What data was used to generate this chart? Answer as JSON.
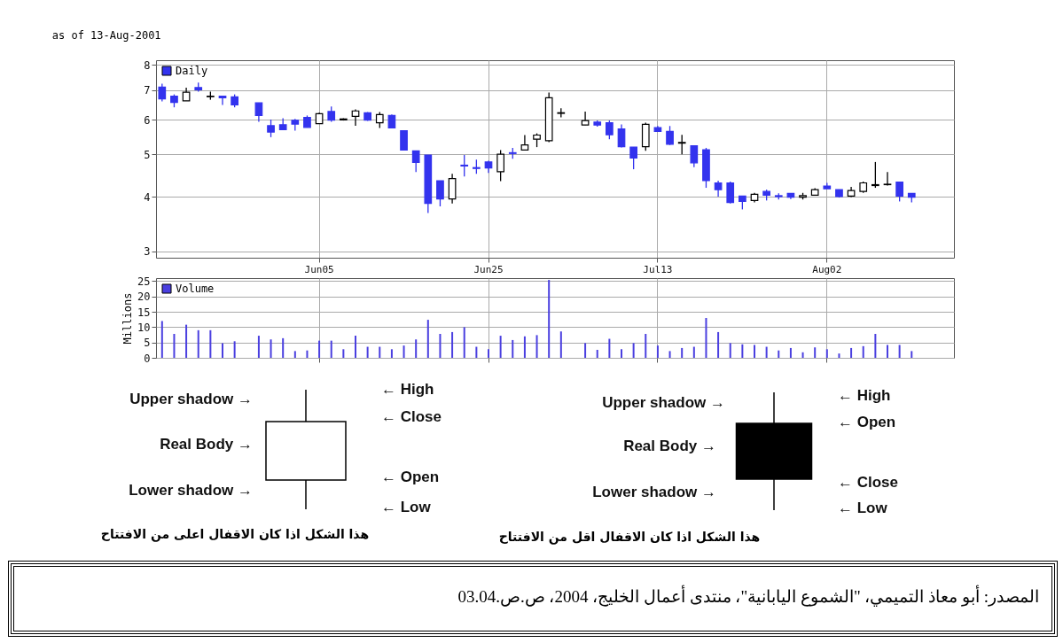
{
  "chart_data": [
    {
      "type": "candlestick",
      "subtitle": "as of 13-Aug-2001",
      "log": true,
      "grid": true,
      "legend": "top left",
      "ylim": [
        2.9,
        8.2
      ],
      "yticks": [
        3,
        4,
        5,
        6,
        7,
        8
      ],
      "categories": [
        null,
        null,
        null,
        null,
        null,
        null,
        null,
        null,
        null,
        null,
        null,
        null,
        null,
        "Jun05",
        null,
        null,
        null,
        null,
        null,
        null,
        null,
        null,
        null,
        null,
        null,
        null,
        null,
        "Jun25",
        null,
        null,
        null,
        null,
        null,
        null,
        null,
        null,
        null,
        null,
        null,
        null,
        null,
        "Jul13",
        null,
        null,
        null,
        null,
        null,
        null,
        null,
        null,
        null,
        null,
        null,
        null,
        null,
        "Aug02",
        null,
        null,
        null,
        null,
        null,
        null,
        null,
        null,
        null,
        null
      ],
      "series": [
        {
          "name": "Daily",
          "color": "#3333ee",
          "colors": [
            "#3333ee",
            "#3333ee",
            "#ffffff",
            "#3333ee",
            "#ffffff",
            "#3333ee",
            "#3333ee",
            null,
            "#3333ee",
            "#3333ee",
            "#3333ee",
            "#3333ee",
            "#3333ee",
            "#ffffff",
            "#3333ee",
            "#ffffff",
            "#ffffff",
            "#3333ee",
            "#ffffff",
            "#3333ee",
            "#3333ee",
            "#3333ee",
            "#3333ee",
            "#3333ee",
            "#ffffff",
            "#3333ee",
            "#3333ee",
            "#3333ee",
            "#ffffff",
            "#3333ee",
            "#ffffff",
            "#ffffff",
            "#ffffff",
            "#ffffff",
            null,
            "#ffffff",
            "#3333ee",
            "#3333ee",
            "#3333ee",
            "#3333ee",
            "#ffffff",
            "#3333ee",
            "#3333ee",
            "#ffffff",
            "#3333ee",
            "#3333ee",
            "#3333ee",
            "#3333ee",
            "#3333ee",
            "#ffffff",
            "#3333ee",
            "#3333ee",
            "#3333ee",
            "#ffffff",
            "#ffffff",
            "#3333ee",
            "#3333ee",
            "#ffffff",
            "#ffffff",
            "#ffffff",
            "#ffffff",
            "#3333ee",
            "#3333ee",
            null,
            null,
            null
          ],
          "ohlc": [
            [
              7.12,
              7.25,
              6.6,
              6.69
            ],
            [
              6.79,
              6.85,
              6.4,
              6.57
            ],
            [
              6.62,
              7.1,
              6.62,
              6.93
            ],
            [
              7.1,
              7.29,
              6.95,
              7.02
            ],
            [
              6.77,
              6.95,
              6.66,
              6.79
            ],
            [
              6.79,
              6.79,
              6.48,
              6.73
            ],
            [
              6.76,
              6.85,
              6.4,
              6.48
            ],
            null,
            [
              6.55,
              6.55,
              5.93,
              6.13
            ],
            [
              5.81,
              6.0,
              5.47,
              5.62
            ],
            [
              5.84,
              6.04,
              5.69,
              5.69
            ],
            [
              5.98,
              6.02,
              5.66,
              5.86
            ],
            [
              6.07,
              6.13,
              5.76,
              5.76
            ],
            [
              5.87,
              6.22,
              5.87,
              6.19
            ],
            [
              6.26,
              6.43,
              5.93,
              5.98
            ],
            [
              5.99,
              6.04,
              5.97,
              6.02
            ],
            [
              6.1,
              6.33,
              5.81,
              6.28
            ],
            [
              6.22,
              6.24,
              5.96,
              5.98
            ],
            [
              5.9,
              6.24,
              5.74,
              6.16
            ],
            [
              6.13,
              6.16,
              5.74,
              5.74
            ],
            [
              5.66,
              5.66,
              5.11,
              5.11
            ],
            [
              5.09,
              5.09,
              4.55,
              4.79
            ],
            [
              4.98,
              4.98,
              3.67,
              3.86
            ],
            [
              4.35,
              4.35,
              3.8,
              3.95
            ],
            [
              3.95,
              4.51,
              3.86,
              4.4
            ],
            [
              4.72,
              4.98,
              4.45,
              4.7
            ],
            [
              4.66,
              4.86,
              4.51,
              4.64
            ],
            [
              4.8,
              4.83,
              4.53,
              4.65
            ],
            [
              4.56,
              5.11,
              4.34,
              5.0
            ],
            [
              5.04,
              5.17,
              4.88,
              5.02
            ],
            [
              5.11,
              5.53,
              5.11,
              5.25
            ],
            [
              5.41,
              5.58,
              5.19,
              5.53
            ],
            [
              5.37,
              6.92,
              5.33,
              6.73
            ],
            [
              6.2,
              6.37,
              6.07,
              6.22
            ],
            null,
            [
              5.83,
              6.26,
              5.83,
              5.97
            ],
            [
              5.92,
              5.97,
              5.78,
              5.83
            ],
            [
              5.9,
              5.97,
              5.41,
              5.54
            ],
            [
              5.71,
              5.85,
              5.18,
              5.2
            ],
            [
              5.19,
              5.19,
              4.62,
              4.9
            ],
            [
              5.2,
              5.9,
              5.09,
              5.85
            ],
            [
              5.75,
              5.8,
              5.62,
              5.64
            ],
            [
              5.64,
              5.8,
              5.25,
              5.27
            ],
            [
              5.3,
              5.54,
              5.0,
              5.32
            ],
            [
              5.23,
              5.23,
              4.67,
              4.78
            ],
            [
              5.12,
              5.17,
              4.19,
              4.35
            ],
            [
              4.3,
              4.35,
              4.0,
              4.15
            ],
            [
              4.3,
              4.33,
              3.86,
              3.88
            ],
            [
              4.01,
              4.01,
              3.74,
              3.9
            ],
            [
              3.92,
              4.08,
              3.88,
              4.05
            ],
            [
              4.11,
              4.15,
              3.92,
              4.03
            ],
            [
              4.02,
              4.07,
              3.94,
              4.0
            ],
            [
              4.07,
              4.07,
              3.95,
              3.99
            ],
            [
              3.99,
              4.08,
              3.94,
              4.02
            ],
            [
              4.03,
              4.18,
              4.03,
              4.15
            ],
            [
              4.23,
              4.3,
              4.17,
              4.17
            ],
            [
              4.15,
              4.15,
              3.98,
              4.0
            ],
            [
              4.01,
              4.21,
              3.99,
              4.13
            ],
            [
              4.11,
              4.33,
              4.08,
              4.3
            ],
            [
              4.24,
              4.8,
              4.19,
              4.26
            ],
            [
              4.26,
              4.55,
              4.24,
              4.27
            ],
            [
              4.32,
              4.32,
              3.9,
              4.01
            ],
            [
              4.07,
              4.07,
              3.88,
              3.99
            ],
            null,
            null,
            null
          ]
        }
      ]
    },
    {
      "type": "bar",
      "ylabel": "Millions",
      "grid": true,
      "legend": "top left",
      "tick_labels": "y",
      "ylim": [
        0,
        26
      ],
      "yticks": [
        0,
        5,
        10,
        15,
        20,
        25
      ],
      "categories": [
        null,
        null,
        null,
        null,
        null,
        null,
        null,
        null,
        null,
        null,
        null,
        null,
        null,
        null,
        null,
        null,
        null,
        null,
        null,
        null,
        null,
        null,
        null,
        null,
        null,
        null,
        null,
        null,
        null,
        null,
        null,
        null,
        null,
        null,
        null,
        null,
        null,
        null,
        null,
        null,
        null,
        null,
        null,
        null,
        null,
        null,
        null,
        null,
        null,
        null,
        null,
        null,
        null,
        null,
        null,
        null,
        null,
        null,
        null,
        null,
        null,
        null,
        null,
        null,
        null,
        null
      ],
      "series": [
        {
          "name": "Volume",
          "color": "#4a3fe0",
          "values": [
            12,
            7.8,
            10.8,
            9,
            9,
            4.8,
            5.4,
            null,
            7.2,
            6,
            6.4,
            2.2,
            2.4,
            5.6,
            5.6,
            2.8,
            7.2,
            3.6,
            3.6,
            2.8,
            4,
            6,
            12.4,
            7.8,
            8.4,
            10,
            3.6,
            2.8,
            7.2,
            5.8,
            7,
            7.4,
            25.4,
            8.6,
            null,
            4.8,
            2.6,
            6.2,
            2.8,
            4.8,
            7.8,
            4,
            2.2,
            3.2,
            3.6,
            13,
            8.4,
            4.8,
            4.4,
            4.2,
            3.6,
            2.4,
            3.2,
            1.8,
            3.4,
            2.8,
            1.4,
            3.2,
            3.8,
            7.8,
            4.2,
            4.2,
            2.2,
            null,
            null,
            null
          ]
        }
      ]
    },
    {
      "type": "other",
      "annotations": [
        "Upper shadow →",
        "Real Body →",
        "Lower shadow →",
        "← High",
        "← Close",
        "← Open",
        "← Low",
        "هذا الشكل اذا كان الاقفال اعلى من الافتتاح",
        "Upper shadow →",
        "Real Body →",
        "Lower shadow →",
        "← High",
        "← Open",
        "← Close",
        "← Low",
        "هذا الشكل اذا كان الاقفال اقل من الافتتاح",
        "المصدر: أبو معاذ التميمي، \"الشموع اليابانية\"، منتدى أعمال الخليج، 2004، ص.ص.03.04"
      ]
    }
  ]
}
